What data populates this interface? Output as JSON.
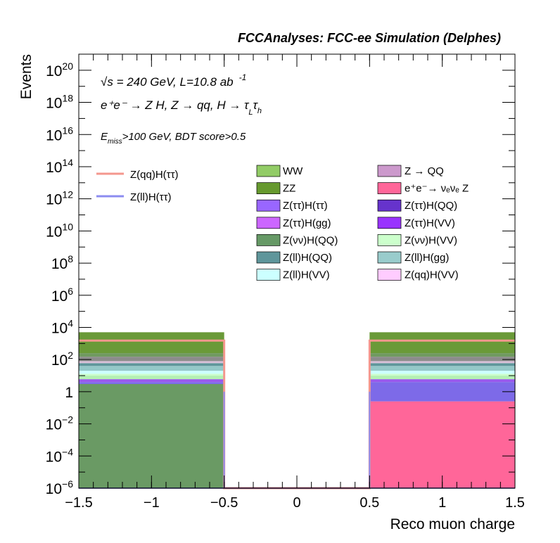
{
  "chart_data": {
    "type": "bar",
    "title": "FCCAnalyses: FCC-ee Simulation (Delphes)",
    "xlabel": "Reco muon charge",
    "ylabel": "Events",
    "xlim": [
      -1.5,
      1.5
    ],
    "ylim": [
      1e-06,
      1e+21
    ],
    "yscale": "log",
    "x_ticks": [
      "−1.5",
      "−1",
      "−0.5",
      "0",
      "0.5",
      "1",
      "1.5"
    ],
    "y_ticks": [
      {
        "base": "10",
        "exp": "20",
        "value": 1e+20
      },
      {
        "base": "10",
        "exp": "18",
        "value": 1e+18
      },
      {
        "base": "10",
        "exp": "16",
        "value": 1e+16
      },
      {
        "base": "10",
        "exp": "14",
        "value": 100000000000000.0
      },
      {
        "base": "10",
        "exp": "12",
        "value": 1000000000000.0
      },
      {
        "base": "10",
        "exp": "10",
        "value": 10000000000.0
      },
      {
        "base": "10",
        "exp": "8",
        "value": 100000000.0
      },
      {
        "base": "10",
        "exp": "6",
        "value": 1000000.0
      },
      {
        "base": "10",
        "exp": "4",
        "value": 10000.0
      },
      {
        "base": "10",
        "exp": "2",
        "value": 100.0
      },
      {
        "base": "1",
        "exp": "",
        "value": 1
      },
      {
        "base": "10",
        "exp": "−2",
        "value": 0.01
      },
      {
        "base": "10",
        "exp": "−4",
        "value": 0.0001
      },
      {
        "base": "10",
        "exp": "−6",
        "value": 1e-06
      }
    ],
    "annotations": {
      "line1_sqrt": "√s",
      "line1_rest": " = 240 GeV, L=10.8 ab",
      "line1_sup": "-1",
      "line2": "e⁺e⁻ → Z H, Z  → qq, H  → τ",
      "line2_sub1": "L",
      "line2_tau": "τ",
      "line2_sub2": "h",
      "line3_E": "E",
      "line3_sub": "miss",
      "line3_rest": ">100 GeV, BDT score>0.5"
    },
    "bins": [
      {
        "x0": -1.5,
        "x1": -0.5
      },
      {
        "x0": 0.5,
        "x1": 1.5
      }
    ],
    "stack_boundaries": [
      [
        1e-06,
        3.0,
        4.0,
        6.0,
        10.0,
        13.0,
        20.0,
        40.0,
        60.0,
        80.0,
        150.0,
        250.0,
        5000.0
      ],
      [
        1e-06,
        0.25,
        4.0,
        6.0,
        10.0,
        13.0,
        20.0,
        40.0,
        60.0,
        80.0,
        150.0,
        250.0,
        5000.0
      ]
    ],
    "stack_colors": [
      "#6a9a64",
      "#7d6ae8",
      "#9a59ec",
      "#b4f0b4",
      "#ccffcc",
      "#ccffff",
      "#94c8c8",
      "#5f969b",
      "#d8bfd8",
      "#8c8c8c",
      "#709a60",
      "#6a9a38"
    ],
    "lines": [
      {
        "name": "Z(qq)H(ττ)",
        "color": "#f4978e",
        "values": [
          1500,
          1500
        ]
      },
      {
        "name": "Z(ll)H(ττ)",
        "color": "#8c8cf0",
        "values": [
          1e-06,
          1e-06
        ]
      }
    ],
    "legend": {
      "placement": "top",
      "line_entries": [
        {
          "label": "Z(qq)H(ττ)",
          "color": "#f4978e"
        },
        {
          "label": "Z(ll)H(ττ)",
          "color": "#8c8cf0"
        }
      ],
      "fill_entries_col1": [
        {
          "label": "WW",
          "color": "#92cc66"
        },
        {
          "label": "ZZ",
          "color": "#66992e"
        },
        {
          "label": "Z(ττ)H(ττ)",
          "color": "#9966ff"
        },
        {
          "label": "Z(ττ)H(gg)",
          "color": "#cc66ff"
        },
        {
          "label": "Z(νν)H(QQ)",
          "color": "#669966"
        },
        {
          "label": "Z(ll)H(QQ)",
          "color": "#5f969b"
        },
        {
          "label": "Z(ll)H(VV)",
          "color": "#ccffff"
        }
      ],
      "fill_entries_col2": [
        {
          "label": "Z → QQ",
          "color": "#cc99cc"
        },
        {
          "label": "e⁺e⁻→ νₑνₑ Z",
          "color": "#ff6699"
        },
        {
          "label": "Z(ττ)H(QQ)",
          "color": "#6633cc"
        },
        {
          "label": "Z(ττ)H(VV)",
          "color": "#9933ff"
        },
        {
          "label": "Z(νν)H(VV)",
          "color": "#ccffcc"
        },
        {
          "label": "Z(ll)H(gg)",
          "color": "#99cccc"
        },
        {
          "label": "Z(qq)H(VV)",
          "color": "#ffccff"
        }
      ]
    }
  }
}
